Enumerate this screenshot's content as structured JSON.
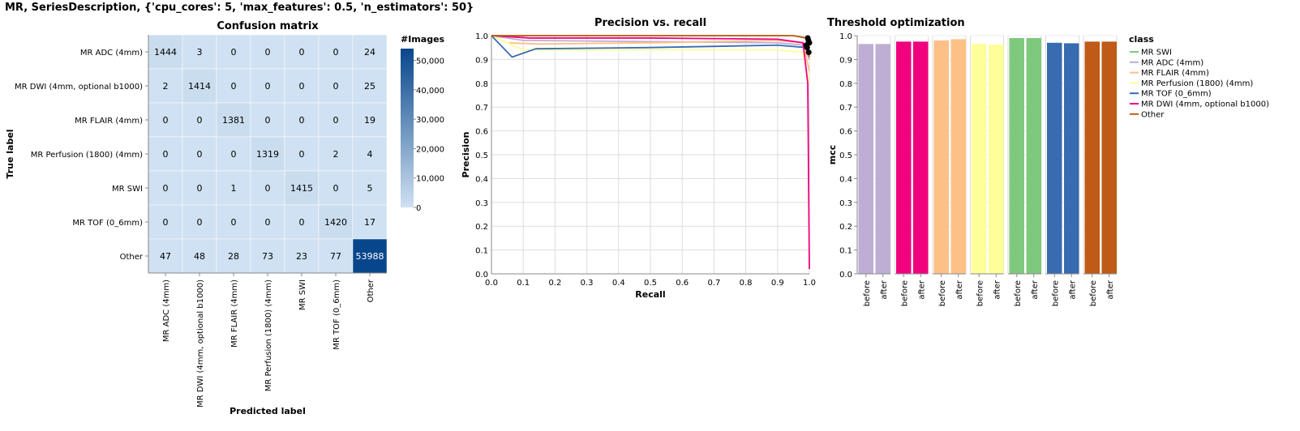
{
  "page": {
    "title": "MR, SeriesDescription, {'cpu_cores': 5, 'max_features': 0.5, 'n_estimators': 50}"
  },
  "chart_data": [
    {
      "type": "heatmap",
      "title": "Confusion matrix",
      "xlabel": "Predicted label",
      "ylabel": "True label",
      "rows": [
        "MR ADC (4mm)",
        "MR DWI (4mm, optional b1000)",
        "MR FLAIR (4mm)",
        "MR Perfusion (1800) (4mm)",
        "MR SWI",
        "MR TOF (0_6mm)",
        "Other"
      ],
      "columns": [
        "MR ADC (4mm)",
        "MR DWI (4mm, optional b1000)",
        "MR FLAIR (4mm)",
        "MR Perfusion (1800) (4mm)",
        "MR SWI",
        "MR TOF (0_6mm)",
        "Other"
      ],
      "values": [
        [
          1444,
          3,
          0,
          0,
          0,
          0,
          24
        ],
        [
          2,
          1414,
          0,
          0,
          0,
          0,
          25
        ],
        [
          0,
          0,
          1381,
          0,
          0,
          0,
          19
        ],
        [
          0,
          0,
          0,
          1319,
          0,
          2,
          4
        ],
        [
          0,
          0,
          1,
          0,
          1415,
          0,
          5
        ],
        [
          0,
          0,
          0,
          0,
          0,
          1420,
          17
        ],
        [
          47,
          48,
          28,
          73,
          23,
          77,
          53988
        ]
      ],
      "colorbar": {
        "title": "#Images",
        "range": [
          0,
          54000
        ],
        "ticks": [
          0,
          10000,
          20000,
          30000,
          40000,
          50000
        ],
        "tick_labels": [
          "0",
          "10,000",
          "20,000",
          "30,000",
          "40,000",
          "50,000"
        ],
        "color_low": "#cfe1f2",
        "color_high": "#08468b"
      }
    },
    {
      "type": "line",
      "title": "Precision vs. recall",
      "xlabel": "Recall",
      "ylabel": "Precision",
      "xlim": [
        0,
        1
      ],
      "ylim": [
        0,
        1
      ],
      "x_ticks": [
        "0.0",
        "0.1",
        "0.2",
        "0.3",
        "0.4",
        "0.5",
        "0.6",
        "0.7",
        "0.8",
        "0.9",
        "1.0"
      ],
      "y_ticks": [
        "0.0",
        "0.1",
        "0.2",
        "0.3",
        "0.4",
        "0.5",
        "0.6",
        "0.7",
        "0.8",
        "0.9",
        "1.0"
      ],
      "grid": true,
      "series": [
        {
          "name": "MR SWI",
          "color": "#7fc97f",
          "x": [
            0,
            0.5,
            0.95,
            0.99,
            1.0
          ],
          "y": [
            1.0,
            1.0,
            1.0,
            0.99,
            0.98
          ]
        },
        {
          "name": "MR ADC (4mm)",
          "color": "#beaed4",
          "x": [
            0,
            0.1,
            0.5,
            0.9,
            0.98,
            1.0
          ],
          "y": [
            1.0,
            0.98,
            0.975,
            0.97,
            0.96,
            0.9
          ]
        },
        {
          "name": "MR FLAIR (4mm)",
          "color": "#fdc086",
          "x": [
            0,
            0.05,
            0.15,
            0.5,
            0.9,
            0.98,
            1.0
          ],
          "y": [
            1.0,
            0.97,
            0.965,
            0.97,
            0.98,
            0.97,
            0.85
          ]
        },
        {
          "name": "MR Perfusion (1800) (4mm)",
          "color": "#ffff99",
          "x": [
            0,
            0.1,
            0.5,
            0.9,
            0.98,
            1.0
          ],
          "y": [
            1.0,
            0.94,
            0.94,
            0.94,
            0.93,
            0.8
          ]
        },
        {
          "name": "MR TOF (0_6mm)",
          "color": "#386cb0",
          "x": [
            0,
            0.065,
            0.14,
            0.5,
            0.9,
            0.99,
            1.0
          ],
          "y": [
            1.0,
            0.91,
            0.945,
            0.95,
            0.96,
            0.95,
            0.92
          ]
        },
        {
          "name": "MR DWI (4mm, optional b1000)",
          "color": "#f0027f",
          "x": [
            0,
            0.12,
            0.5,
            0.9,
            0.98,
            0.995,
            1.0
          ],
          "y": [
            1.0,
            0.99,
            0.99,
            0.985,
            0.97,
            0.8,
            0.02
          ]
        },
        {
          "name": "Other",
          "color": "#bf5b17",
          "x": [
            0,
            0.5,
            0.95,
            0.99,
            1.0
          ],
          "y": [
            1.0,
            1.0,
            1.0,
            0.99,
            0.91
          ]
        }
      ],
      "threshold_points": [
        {
          "x": 0.99,
          "y": 0.96
        },
        {
          "x": 0.995,
          "y": 0.99
        },
        {
          "x": 1.0,
          "y": 0.97
        },
        {
          "x": 0.998,
          "y": 0.93
        },
        {
          "x": 0.993,
          "y": 0.95
        },
        {
          "x": 0.997,
          "y": 0.98
        }
      ]
    },
    {
      "type": "bar",
      "title": "Threshold optimization",
      "ylabel": "mcc",
      "ylim": [
        0,
        1
      ],
      "y_ticks": [
        "0.0",
        "0.1",
        "0.2",
        "0.3",
        "0.4",
        "0.5",
        "0.6",
        "0.7",
        "0.8",
        "0.9",
        "1.0"
      ],
      "categories": [
        "before",
        "after"
      ],
      "legend_title": "class",
      "groups": [
        {
          "name": "MR ADC (4mm)",
          "color": "#beaed4",
          "values": [
            0.965,
            0.965
          ]
        },
        {
          "name": "MR DWI (4mm, optional b1000)",
          "color": "#f0027f",
          "values": [
            0.975,
            0.975
          ]
        },
        {
          "name": "MR FLAIR (4mm)",
          "color": "#fdc086",
          "values": [
            0.98,
            0.985
          ]
        },
        {
          "name": "MR Perfusion (1800) (4mm)",
          "color": "#ffff99",
          "values": [
            0.965,
            0.962
          ]
        },
        {
          "name": "MR SWI",
          "color": "#7fc97f",
          "values": [
            0.99,
            0.99
          ]
        },
        {
          "name": "MR TOF (0_6mm)",
          "color": "#386cb0",
          "values": [
            0.97,
            0.968
          ]
        },
        {
          "name": "Other",
          "color": "#bf5b17",
          "values": [
            0.975,
            0.975
          ]
        }
      ],
      "legend": [
        "MR SWI",
        "MR ADC (4mm)",
        "MR FLAIR (4mm)",
        "MR Perfusion (1800) (4mm)",
        "MR TOF (0_6mm)",
        "MR DWI (4mm, optional b1000)",
        "Other"
      ],
      "legend_colors": [
        "#7fc97f",
        "#beaed4",
        "#fdc086",
        "#ffff99",
        "#386cb0",
        "#f0027f",
        "#bf5b17"
      ]
    }
  ]
}
